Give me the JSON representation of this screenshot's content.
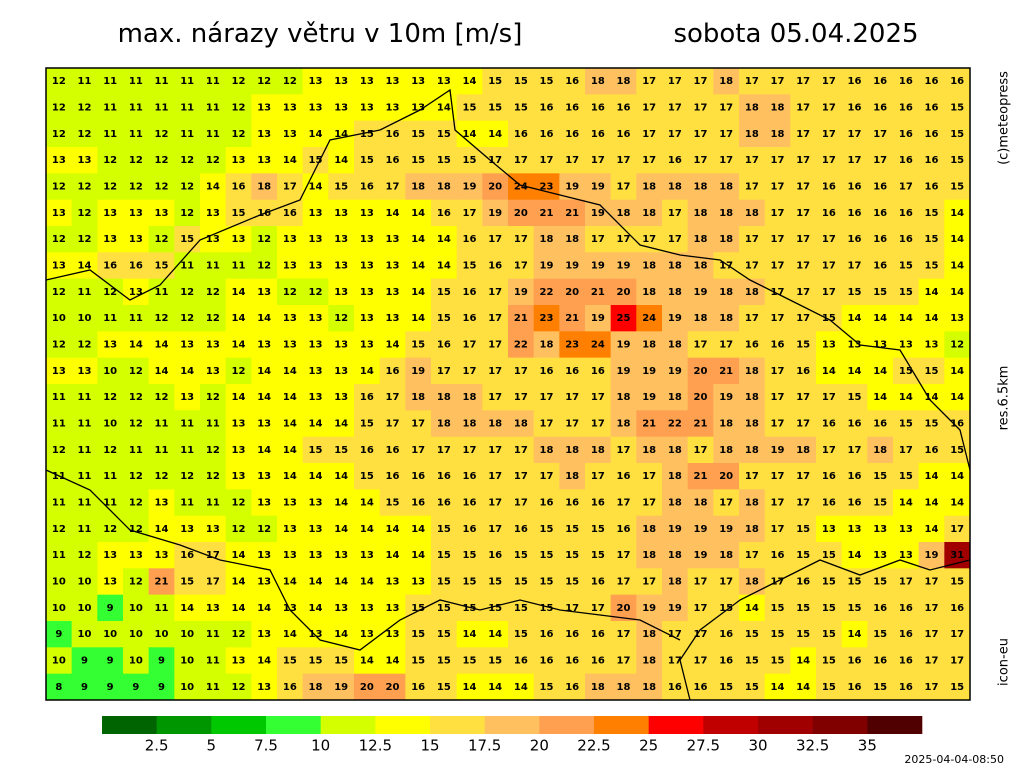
{
  "header": {
    "title": "max. nárazy větru v 10m [m/s]",
    "date": "sobota 05.04.2025"
  },
  "map": {
    "rows": [
      [
        12,
        11,
        11,
        11,
        11,
        11,
        11,
        12,
        12,
        12,
        13,
        13,
        13,
        13,
        13,
        13,
        14,
        15,
        15,
        15,
        16,
        18,
        18,
        17,
        17,
        17,
        18,
        17,
        17,
        17,
        17,
        16,
        16,
        16,
        16,
        16
      ],
      [
        12,
        12,
        11,
        11,
        11,
        11,
        11,
        12,
        13,
        13,
        13,
        13,
        13,
        13,
        13,
        14,
        15,
        15,
        15,
        16,
        16,
        16,
        16,
        17,
        17,
        17,
        17,
        18,
        18,
        17,
        17,
        16,
        16,
        16,
        16,
        15
      ],
      [
        12,
        12,
        11,
        11,
        12,
        11,
        11,
        12,
        13,
        13,
        14,
        14,
        15,
        16,
        15,
        15,
        14,
        14,
        16,
        16,
        16,
        16,
        16,
        17,
        17,
        17,
        17,
        18,
        18,
        17,
        17,
        17,
        17,
        16,
        16,
        15
      ],
      [
        13,
        13,
        12,
        12,
        12,
        12,
        12,
        13,
        13,
        14,
        15,
        14,
        15,
        16,
        15,
        15,
        15,
        17,
        17,
        17,
        17,
        17,
        17,
        17,
        16,
        17,
        17,
        17,
        17,
        17,
        17,
        17,
        17,
        16,
        16,
        15
      ],
      [
        12,
        12,
        12,
        12,
        12,
        12,
        14,
        16,
        18,
        17,
        14,
        15,
        16,
        17,
        18,
        18,
        19,
        20,
        24,
        23,
        19,
        19,
        17,
        18,
        18,
        18,
        18,
        17,
        17,
        17,
        16,
        16,
        16,
        17,
        16,
        15
      ],
      [
        13,
        12,
        13,
        13,
        13,
        12,
        13,
        15,
        16,
        16,
        13,
        13,
        13,
        14,
        14,
        16,
        17,
        19,
        20,
        21,
        21,
        19,
        18,
        18,
        17,
        18,
        18,
        18,
        17,
        17,
        16,
        16,
        16,
        16,
        15,
        14
      ],
      [
        12,
        12,
        13,
        13,
        12,
        15,
        13,
        13,
        12,
        13,
        13,
        13,
        13,
        13,
        14,
        14,
        16,
        17,
        17,
        18,
        18,
        17,
        17,
        17,
        17,
        18,
        18,
        17,
        17,
        17,
        17,
        16,
        16,
        16,
        15,
        14
      ],
      [
        13,
        14,
        16,
        16,
        15,
        11,
        11,
        11,
        12,
        13,
        13,
        13,
        13,
        13,
        14,
        14,
        15,
        16,
        17,
        19,
        19,
        19,
        19,
        18,
        18,
        18,
        17,
        17,
        17,
        17,
        17,
        17,
        16,
        15,
        15,
        14
      ],
      [
        12,
        11,
        12,
        13,
        11,
        12,
        12,
        14,
        13,
        12,
        12,
        13,
        13,
        13,
        14,
        15,
        16,
        17,
        19,
        22,
        20,
        21,
        20,
        18,
        18,
        19,
        18,
        18,
        17,
        17,
        17,
        15,
        15,
        15,
        14,
        14
      ],
      [
        10,
        10,
        11,
        11,
        12,
        12,
        12,
        14,
        14,
        13,
        13,
        12,
        13,
        13,
        14,
        15,
        16,
        17,
        21,
        23,
        21,
        19,
        25,
        24,
        19,
        18,
        18,
        17,
        17,
        17,
        15,
        14,
        14,
        14,
        14,
        13
      ],
      [
        12,
        12,
        13,
        14,
        14,
        13,
        13,
        14,
        13,
        13,
        13,
        13,
        13,
        14,
        15,
        16,
        17,
        17,
        22,
        18,
        23,
        24,
        19,
        18,
        18,
        17,
        17,
        16,
        16,
        15,
        13,
        13,
        13,
        13,
        13,
        12
      ],
      [
        13,
        13,
        10,
        12,
        14,
        14,
        13,
        12,
        14,
        14,
        13,
        13,
        14,
        16,
        19,
        17,
        17,
        17,
        17,
        16,
        16,
        16,
        19,
        19,
        19,
        20,
        21,
        18,
        17,
        16,
        14,
        14,
        14,
        15,
        15,
        14
      ],
      [
        11,
        11,
        12,
        12,
        12,
        13,
        12,
        14,
        14,
        14,
        13,
        13,
        16,
        17,
        18,
        18,
        18,
        17,
        17,
        17,
        17,
        17,
        18,
        19,
        18,
        20,
        19,
        18,
        17,
        17,
        17,
        15,
        14,
        14,
        14,
        14
      ],
      [
        11,
        11,
        10,
        12,
        11,
        11,
        11,
        13,
        13,
        14,
        14,
        14,
        15,
        17,
        17,
        18,
        18,
        18,
        18,
        17,
        17,
        17,
        18,
        21,
        22,
        21,
        18,
        18,
        17,
        17,
        16,
        16,
        16,
        15,
        15,
        16
      ],
      [
        12,
        11,
        12,
        11,
        11,
        11,
        12,
        13,
        14,
        14,
        15,
        15,
        16,
        16,
        17,
        17,
        17,
        17,
        17,
        18,
        18,
        18,
        17,
        18,
        18,
        17,
        18,
        18,
        19,
        18,
        17,
        17,
        18,
        17,
        16,
        15
      ],
      [
        11,
        11,
        11,
        12,
        12,
        12,
        12,
        13,
        13,
        14,
        14,
        14,
        15,
        16,
        16,
        16,
        16,
        17,
        17,
        17,
        18,
        17,
        16,
        17,
        18,
        21,
        20,
        17,
        17,
        17,
        16,
        16,
        15,
        15,
        14,
        14
      ],
      [
        11,
        11,
        11,
        12,
        13,
        11,
        11,
        12,
        13,
        13,
        13,
        14,
        14,
        15,
        16,
        16,
        16,
        17,
        17,
        16,
        16,
        16,
        17,
        17,
        18,
        18,
        17,
        18,
        17,
        17,
        16,
        16,
        15,
        14,
        14,
        14
      ],
      [
        12,
        11,
        12,
        12,
        14,
        13,
        13,
        12,
        12,
        13,
        13,
        14,
        14,
        14,
        14,
        15,
        16,
        17,
        16,
        15,
        15,
        15,
        16,
        18,
        19,
        19,
        19,
        18,
        17,
        15,
        13,
        13,
        13,
        13,
        14,
        17
      ],
      [
        11,
        12,
        13,
        13,
        13,
        16,
        17,
        14,
        13,
        13,
        13,
        13,
        13,
        14,
        14,
        15,
        15,
        16,
        15,
        15,
        15,
        15,
        17,
        18,
        18,
        19,
        18,
        17,
        16,
        15,
        15,
        14,
        13,
        13,
        19,
        31
      ],
      [
        10,
        10,
        13,
        12,
        21,
        15,
        17,
        14,
        13,
        14,
        14,
        14,
        14,
        13,
        13,
        15,
        15,
        15,
        15,
        15,
        15,
        16,
        17,
        17,
        18,
        17,
        17,
        18,
        17,
        16,
        15,
        15,
        15,
        17,
        17,
        15
      ],
      [
        10,
        10,
        9,
        10,
        11,
        14,
        13,
        14,
        14,
        13,
        14,
        13,
        13,
        13,
        15,
        15,
        15,
        15,
        15,
        15,
        17,
        17,
        20,
        19,
        19,
        17,
        15,
        14,
        15,
        15,
        15,
        15,
        16,
        16,
        17,
        16
      ],
      [
        9,
        10,
        10,
        10,
        10,
        10,
        11,
        12,
        13,
        14,
        13,
        14,
        13,
        13,
        15,
        15,
        14,
        14,
        15,
        16,
        16,
        16,
        17,
        18,
        17,
        17,
        16,
        15,
        15,
        15,
        15,
        14,
        15,
        16,
        17,
        17
      ],
      [
        10,
        9,
        9,
        10,
        9,
        10,
        11,
        13,
        14,
        15,
        15,
        15,
        14,
        14,
        15,
        15,
        15,
        15,
        16,
        16,
        16,
        16,
        17,
        18,
        17,
        17,
        16,
        15,
        15,
        14,
        15,
        16,
        16,
        16,
        17,
        17
      ],
      [
        8,
        9,
        9,
        9,
        9,
        10,
        11,
        12,
        13,
        16,
        18,
        19,
        20,
        20,
        16,
        15,
        14,
        14,
        14,
        15,
        16,
        18,
        18,
        18,
        16,
        16,
        15,
        15,
        14,
        14,
        15,
        16,
        15,
        16,
        17,
        15
      ]
    ]
  },
  "legend": {
    "ticks": [
      2.5,
      5,
      7.5,
      10,
      12.5,
      15,
      17.5,
      20,
      22.5,
      25,
      27.5,
      30,
      32.5,
      35
    ],
    "colors": [
      "#006400",
      "#009600",
      "#00c800",
      "#33ff33",
      "#d4ff00",
      "#ffff00",
      "#ffe040",
      "#ffc060",
      "#ffa050",
      "#ff8000",
      "#ff0000",
      "#c00000",
      "#a00000",
      "#800000",
      "#500000"
    ]
  },
  "side_labels": {
    "copyright": "(c)meteopress",
    "resolution": "res.6.5km",
    "model": "icon-eu"
  },
  "timestamp": "2025-04-04-08:50"
}
